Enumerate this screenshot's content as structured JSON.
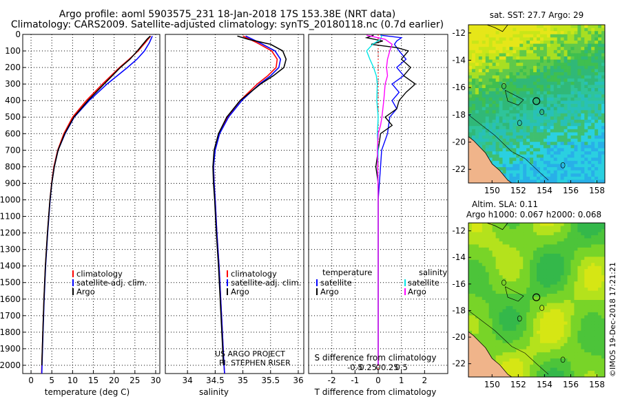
{
  "figure": {
    "title_line1": "Argo profile: aoml 5903575_231 18-Jan-2018 17S 153.38E (NRT data)",
    "title_line2": "Climatology: CARS2009. Satellite-adjusted climatology: synTS_20180118.nc (0.7d earlier)",
    "credit_line1": "US ARGO PROJECT",
    "credit_line2": "PI: STEPHEN RISER",
    "stamp": "©IMOS 19-Dec-2018 17:21:21"
  },
  "colors": {
    "climatology": "#ff0000",
    "satellite": "#0000ff",
    "argo": "#000000",
    "sat_salinity": "#00e5e5",
    "argo_salinity": "#ff00ff"
  },
  "chart_data": [
    {
      "type": "line",
      "name": "temperature-profile",
      "xlabel": "temperature (deg C)",
      "ylabel": "",
      "xlim": [
        -2,
        31
      ],
      "ylim": [
        2050,
        0
      ],
      "xticks": [
        "0",
        "5",
        "10",
        "15",
        "20",
        "25",
        "30"
      ],
      "yticks": [
        "0",
        "100",
        "200",
        "300",
        "400",
        "500",
        "600",
        "700",
        "800",
        "900",
        "1000",
        "1100",
        "1200",
        "1300",
        "1400",
        "1500",
        "1600",
        "1700",
        "1800",
        "1900",
        "2000"
      ],
      "legend": [
        "climatology",
        "satellite-adj. clim.",
        "Argo"
      ],
      "series": [
        {
          "name": "climatology",
          "color": "#ff0000",
          "depth": [
            10,
            50,
            100,
            150,
            200,
            300,
            400,
            500,
            600,
            700,
            800,
            900,
            1000,
            1200,
            1400,
            1600,
            1800,
            2000,
            2050
          ],
          "values": [
            28.8,
            27.5,
            25.8,
            23.6,
            21.3,
            17.2,
            13.3,
            10.0,
            7.9,
            6.4,
            5.5,
            4.95,
            4.55,
            3.95,
            3.45,
            3.1,
            2.85,
            2.6,
            2.55
          ]
        },
        {
          "name": "satellite-adj. clim.",
          "color": "#0000ff",
          "depth": [
            10,
            50,
            100,
            150,
            200,
            300,
            400,
            500,
            600,
            700,
            800,
            900,
            1000,
            1200,
            1400,
            1600,
            1800,
            2000,
            2050
          ],
          "values": [
            29.2,
            28.5,
            27.3,
            25.5,
            23.2,
            18.3,
            14.0,
            10.4,
            8.2,
            6.5,
            5.6,
            5.0,
            4.6,
            4.0,
            3.5,
            3.15,
            2.9,
            2.65,
            2.6
          ]
        },
        {
          "name": "Argo",
          "color": "#000000",
          "depth": [
            10,
            30,
            60,
            100,
            150,
            200,
            300,
            400,
            500,
            600,
            700,
            800,
            900,
            1000,
            1200,
            1400,
            1600,
            1800,
            2000
          ],
          "values": [
            28.7,
            27.9,
            26.9,
            25.6,
            23.8,
            21.5,
            17.6,
            13.7,
            10.3,
            8.1,
            6.5,
            5.6,
            5.0,
            4.55,
            3.95,
            3.45,
            3.1,
            2.85,
            2.6
          ]
        }
      ]
    },
    {
      "type": "line",
      "name": "salinity-profile",
      "xlabel": "salinity",
      "ylabel": "",
      "xlim": [
        33.6,
        36.1
      ],
      "ylim": [
        2050,
        0
      ],
      "xticks": [
        "34",
        "34.5",
        "35",
        "35.5",
        "36"
      ],
      "legend": [
        "climatology",
        "satellite-adj. clim.",
        "Argo"
      ],
      "series": [
        {
          "name": "climatology",
          "color": "#ff0000",
          "depth": [
            10,
            50,
            100,
            150,
            200,
            250,
            300,
            400,
            500,
            600,
            700,
            800,
            900,
            1000,
            1200,
            1400,
            1600,
            1800,
            2000,
            2050
          ],
          "values": [
            35.0,
            35.25,
            35.52,
            35.62,
            35.6,
            35.45,
            35.26,
            34.95,
            34.72,
            34.57,
            34.49,
            34.47,
            34.48,
            34.5,
            34.53,
            34.57,
            34.6,
            34.63,
            34.66,
            34.67
          ]
        },
        {
          "name": "satellite-adj. clim.",
          "color": "#0000ff",
          "depth": [
            10,
            50,
            100,
            150,
            200,
            250,
            300,
            400,
            500,
            600,
            700,
            800,
            900,
            1000,
            1200,
            1400,
            1600,
            1800,
            2000,
            2050
          ],
          "values": [
            35.05,
            35.3,
            35.58,
            35.68,
            35.65,
            35.5,
            35.3,
            34.98,
            34.74,
            34.58,
            34.5,
            34.47,
            34.48,
            34.5,
            34.53,
            34.57,
            34.6,
            34.63,
            34.66,
            34.67
          ]
        },
        {
          "name": "Argo",
          "color": "#000000",
          "depth": [
            10,
            30,
            60,
            100,
            150,
            200,
            250,
            300,
            400,
            500,
            600,
            700,
            800,
            900,
            1000,
            1200,
            1400,
            1600,
            1800,
            2000
          ],
          "values": [
            34.9,
            35.1,
            35.5,
            35.72,
            35.78,
            35.74,
            35.55,
            35.32,
            34.95,
            34.71,
            34.56,
            34.48,
            34.46,
            34.47,
            34.49,
            34.52,
            34.56,
            34.59,
            34.62,
            34.65
          ]
        }
      ]
    },
    {
      "type": "line",
      "name": "difference-profile",
      "xlabel": "T difference from climatology",
      "xlabel_top": "S difference from climatology",
      "xlim": [
        -3,
        3
      ],
      "ylim": [
        2050,
        0
      ],
      "xticks": [
        "-2",
        "-1",
        "0",
        "1",
        "2"
      ],
      "xticks_s": [
        "-0.5",
        "-0.25",
        "0",
        "0.25",
        "0.5"
      ],
      "legend_left_title": "temperature",
      "legend_right_title": "salinity",
      "legend_left": [
        "satellite",
        "Argo"
      ],
      "legend_right": [
        "satellite",
        "Argo"
      ],
      "series": [
        {
          "name": "T satellite",
          "color": "#0000ff",
          "depth": [
            5,
            20,
            40,
            60,
            100,
            150,
            200,
            250,
            300,
            350,
            400,
            450,
            500,
            600,
            700,
            800,
            900,
            1000,
            1200,
            1400,
            1600,
            1800,
            2000
          ],
          "values": [
            0.1,
            1.0,
            0.8,
            0.7,
            0.9,
            1.2,
            0.8,
            1.1,
            0.6,
            0.9,
            0.6,
            0.8,
            0.5,
            0.4,
            0.15,
            0.1,
            0.05,
            0.0,
            0.0,
            0.0,
            0.0,
            0.0,
            0.0
          ]
        },
        {
          "name": "T Argo",
          "color": "#000000",
          "depth": [
            5,
            20,
            40,
            60,
            80,
            100,
            150,
            200,
            250,
            300,
            350,
            400,
            450,
            500,
            550,
            600,
            700,
            800,
            900,
            1000,
            1200,
            1400,
            1600,
            1800,
            2000
          ],
          "values": [
            -0.2,
            -0.5,
            0.2,
            -0.3,
            0.8,
            1.3,
            1.0,
            1.4,
            1.1,
            1.6,
            1.2,
            0.9,
            0.8,
            0.3,
            0.6,
            0.1,
            0.0,
            -0.1,
            0.0,
            0.0,
            0.0,
            0.0,
            0.0,
            0.0,
            0.0
          ]
        },
        {
          "name": "S satellite",
          "color": "#00e5e5",
          "depth": [
            5,
            30,
            60,
            100,
            150,
            200,
            250,
            300,
            400,
            500,
            600,
            700,
            800,
            1000,
            1200,
            1400,
            1600,
            1800,
            2000
          ],
          "values": [
            0.08,
            0.05,
            -0.12,
            -0.25,
            -0.18,
            -0.1,
            -0.04,
            -0.02,
            -0.03,
            0.0,
            -0.02,
            0.0,
            -0.01,
            0.0,
            0.0,
            0.0,
            0.0,
            0.0,
            0.0
          ]
        },
        {
          "name": "S Argo",
          "color": "#ff00ff",
          "depth": [
            5,
            30,
            60,
            100,
            150,
            200,
            250,
            300,
            400,
            500,
            550,
            600,
            700,
            800,
            1000,
            1200,
            1400,
            1600,
            1800,
            2000
          ],
          "values": [
            -0.25,
            0.15,
            0.3,
            0.25,
            0.2,
            0.18,
            0.2,
            0.15,
            0.12,
            0.08,
            0.05,
            0.0,
            -0.02,
            -0.01,
            0.0,
            0.0,
            0.0,
            0.0,
            0.0,
            0.0
          ]
        }
      ]
    },
    {
      "type": "heatmap",
      "name": "sst-map",
      "title": "sat. SST: 27.7 Argo: 29",
      "xticks": [
        "150",
        "152",
        "154",
        "156",
        "158"
      ],
      "yticks": [
        "-12",
        "-14",
        "-16",
        "-18",
        "-20",
        "-22"
      ],
      "xlim": [
        148.2,
        158.6
      ],
      "ylim": [
        -23.0,
        -11.4
      ],
      "float_lon": 153.38,
      "float_lat": -17.0
    },
    {
      "type": "heatmap",
      "name": "sla-map",
      "title": "Altim. SLA: 0.11",
      "subtitle": "Argo h1000: 0.067 h2000: 0.068",
      "xticks": [
        "150",
        "152",
        "154",
        "156",
        "158"
      ],
      "yticks": [
        "-12",
        "-14",
        "-16",
        "-18",
        "-20",
        "-22"
      ],
      "xlim": [
        148.2,
        158.6
      ],
      "ylim": [
        -23.0,
        -11.4
      ],
      "float_lon": 153.38,
      "float_lat": -17.0
    }
  ]
}
